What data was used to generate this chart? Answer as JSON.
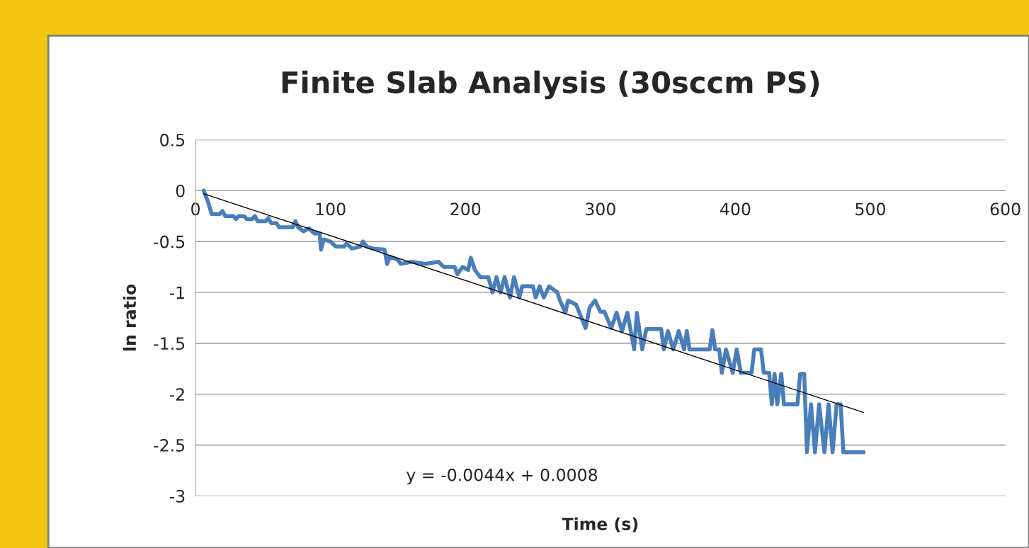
{
  "chart_data": {
    "type": "line",
    "title": "Finite Slab Analysis (30sccm PS)",
    "xlabel": "Time (s)",
    "ylabel": "ln ratio",
    "xlim": [
      0,
      600
    ],
    "xticks": [
      0,
      100,
      200,
      300,
      400,
      500,
      600
    ],
    "ylim": [
      -3,
      0.5
    ],
    "yticks": [
      -3,
      -2.5,
      -2,
      -1.5,
      -1,
      -0.5,
      0,
      0.5
    ],
    "grid": "y",
    "legend": false,
    "marker": "none",
    "line_style": "solid",
    "annotations": [
      "y = -0.0044x + 0.0008"
    ],
    "series": [
      {
        "color": "#4a7ebb",
        "x": [
          6,
          9,
          12,
          18,
          20,
          22,
          28,
          30,
          32,
          36,
          38,
          42,
          44,
          46,
          52,
          54,
          56,
          60,
          62,
          72,
          74,
          76,
          80,
          84,
          88,
          92,
          93,
          95,
          100,
          104,
          110,
          112,
          116,
          122,
          124,
          127,
          132,
          140,
          142,
          144,
          150,
          152,
          160,
          170,
          180,
          184,
          192,
          194,
          198,
          202,
          204,
          207,
          211,
          217,
          220,
          223,
          226,
          229,
          233,
          236,
          240,
          242,
          250,
          252,
          255,
          258,
          262,
          268,
          270,
          274,
          276,
          282,
          289,
          292,
          296,
          300,
          303,
          308,
          312,
          316,
          320,
          325,
          327,
          331,
          334,
          345,
          347,
          350,
          354,
          358,
          362,
          364,
          366,
          381,
          383,
          385,
          388,
          390,
          393,
          398,
          401,
          404,
          412,
          414,
          419,
          421,
          425,
          427,
          429,
          431,
          434,
          436,
          446,
          448,
          451,
          453,
          456,
          459,
          462,
          466,
          469,
          472,
          475,
          478,
          480,
          495
        ],
        "values": [
          0,
          -0.1,
          -0.23,
          -0.23,
          -0.2,
          -0.25,
          -0.25,
          -0.28,
          -0.25,
          -0.25,
          -0.28,
          -0.28,
          -0.25,
          -0.3,
          -0.3,
          -0.27,
          -0.32,
          -0.32,
          -0.36,
          -0.36,
          -0.3,
          -0.36,
          -0.4,
          -0.37,
          -0.42,
          -0.42,
          -0.58,
          -0.48,
          -0.5,
          -0.55,
          -0.55,
          -0.52,
          -0.57,
          -0.55,
          -0.5,
          -0.55,
          -0.57,
          -0.58,
          -0.72,
          -0.65,
          -0.68,
          -0.72,
          -0.7,
          -0.72,
          -0.7,
          -0.75,
          -0.75,
          -0.82,
          -0.75,
          -0.78,
          -0.66,
          -0.78,
          -0.85,
          -0.85,
          -1.0,
          -0.85,
          -1.0,
          -0.85,
          -1.05,
          -0.85,
          -1.05,
          -0.94,
          -0.94,
          -1.05,
          -0.94,
          -1.05,
          -0.94,
          -1.0,
          -1.08,
          -1.2,
          -1.08,
          -1.12,
          -1.35,
          -1.15,
          -1.08,
          -1.19,
          -1.19,
          -1.35,
          -1.2,
          -1.38,
          -1.2,
          -1.56,
          -1.2,
          -1.56,
          -1.36,
          -1.36,
          -1.56,
          -1.38,
          -1.56,
          -1.38,
          -1.56,
          -1.38,
          -1.56,
          -1.56,
          -1.37,
          -1.56,
          -1.56,
          -1.79,
          -1.56,
          -1.79,
          -1.56,
          -1.79,
          -1.79,
          -1.56,
          -1.56,
          -1.79,
          -1.79,
          -2.1,
          -1.8,
          -2.1,
          -1.8,
          -2.1,
          -2.1,
          -1.8,
          -1.8,
          -2.57,
          -2.1,
          -2.57,
          -2.1,
          -2.57,
          -2.1,
          -2.57,
          -2.1,
          -2.1,
          -2.57,
          -2.57
        ]
      },
      {
        "color": "#000000",
        "x": [
          6,
          495
        ],
        "values": [
          -0.03,
          -2.18
        ]
      }
    ]
  }
}
